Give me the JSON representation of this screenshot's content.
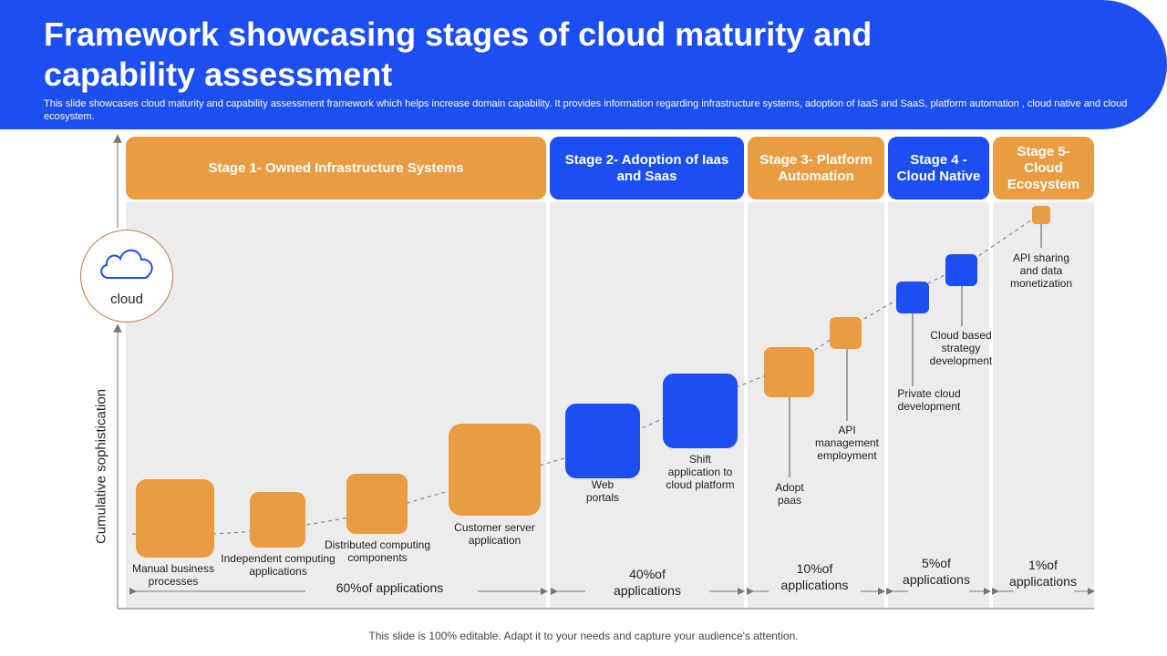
{
  "header": {
    "title": "Framework showcasing stages of cloud maturity and capability assessment",
    "subtitle": "This slide showcases cloud maturity and capability assessment framework which helps increase domain capability. It provides information regarding infrastructure systems, adoption of IaaS and SaaS, platform automation , cloud native and cloud ecosystem."
  },
  "stages": [
    {
      "label": "Stage 1- Owned Infrastructure Systems",
      "percent": "60%of applications"
    },
    {
      "label": "Stage 2- Adoption of Iaas and Saas",
      "percent": "40%of applications"
    },
    {
      "label": "Stage 3- Platform Automation",
      "percent": "10%of applications"
    },
    {
      "label": "Stage 4 - Cloud Native",
      "percent": "5%of applications"
    },
    {
      "label": "Stage 5- Cloud Ecosystem",
      "percent": "1%of applications"
    }
  ],
  "items": [
    {
      "label": "Manual business processes"
    },
    {
      "label": "Independent computing applications"
    },
    {
      "label": "Distributed computing components"
    },
    {
      "label": "Customer server application"
    },
    {
      "label": "Web portals"
    },
    {
      "label": "Shift application to cloud platform"
    },
    {
      "label": "Adopt paas"
    },
    {
      "label": "API management employment"
    },
    {
      "label": "Private cloud development"
    },
    {
      "label": "Cloud based strategy development"
    },
    {
      "label": "API sharing and data monetization"
    }
  ],
  "axis": {
    "icon_label": "cloud",
    "icon": "cloud-icon",
    "ylabel": "Cumulative sophistication"
  },
  "colors": {
    "blue": "#1c4ef0",
    "orange": "#e99c42",
    "panel": "#ececec"
  },
  "footer": "This slide is 100% editable. Adapt it to your needs and capture your audience's attention."
}
